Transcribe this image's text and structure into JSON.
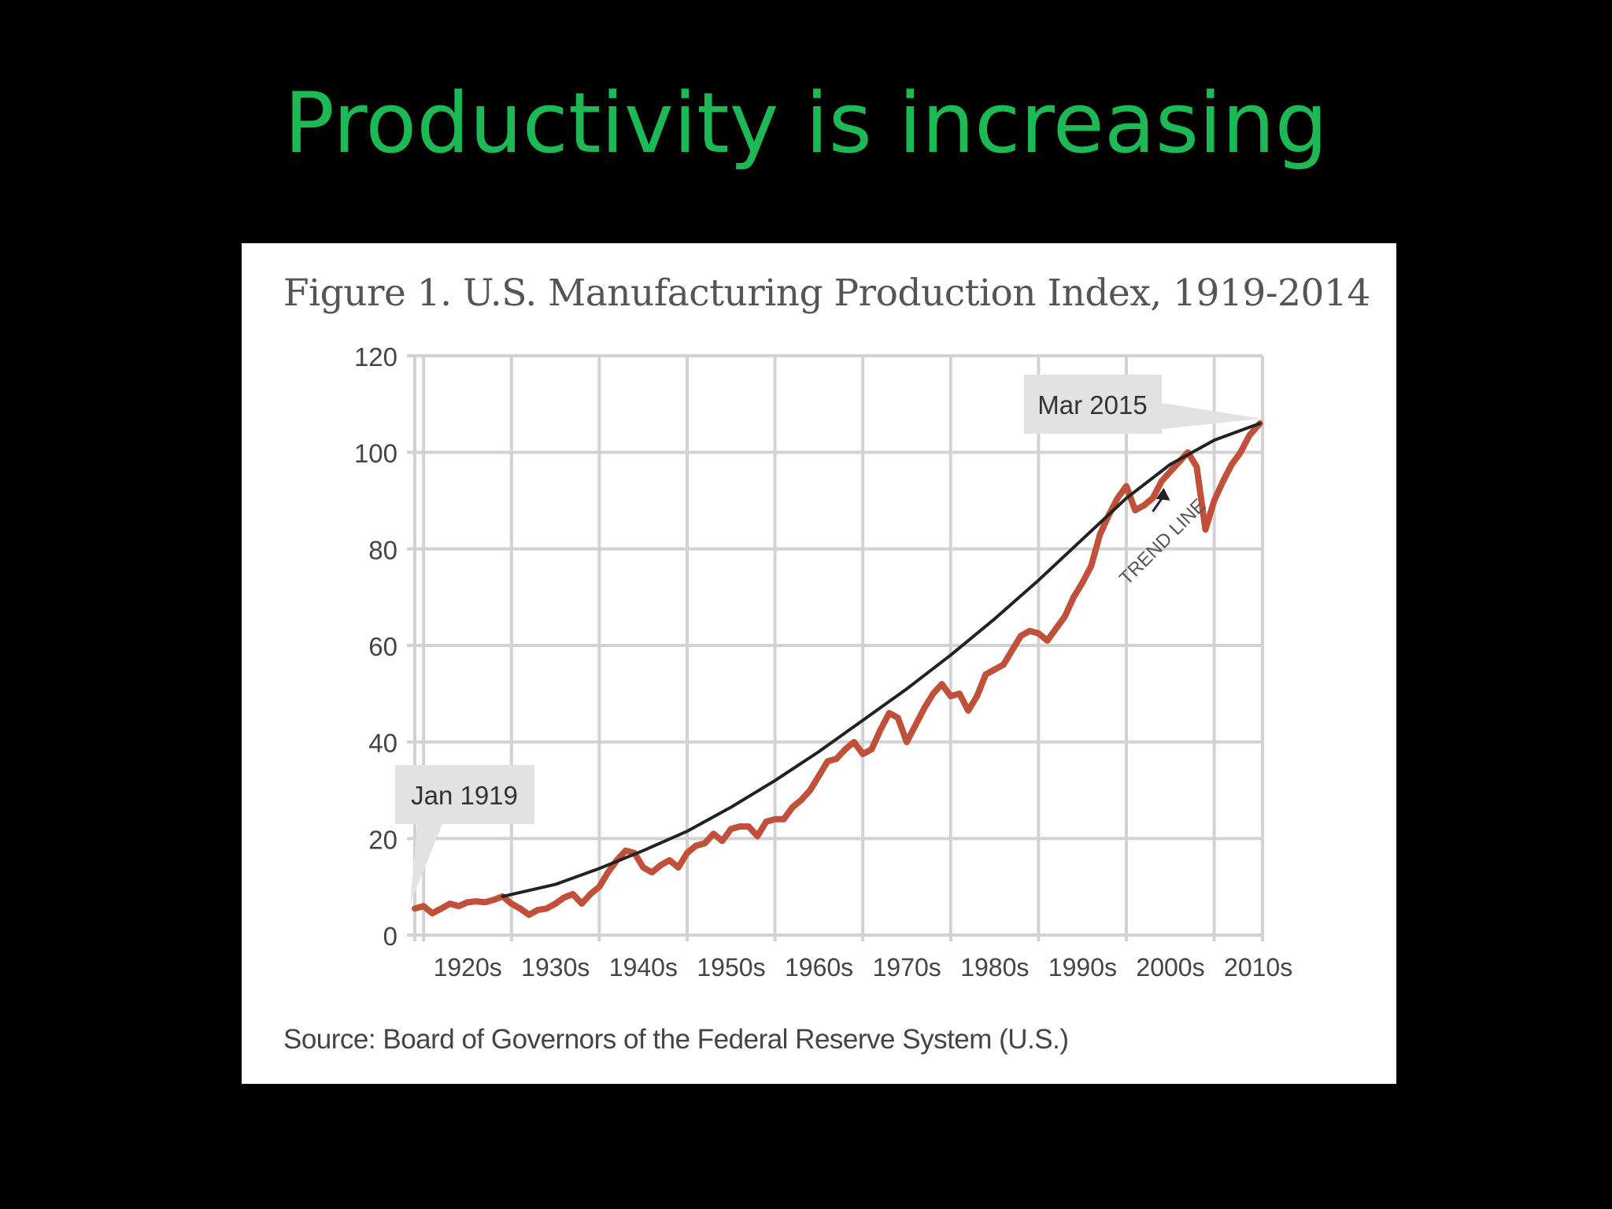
{
  "slide": {
    "title": "Productivity is increasing",
    "title_color": "#1db954",
    "background": "#000000"
  },
  "chart_data": {
    "type": "line",
    "title": "Figure 1. U.S. Manufacturing Production Index, 1919-2014",
    "source": "Source: Board of Governors of the Federal Reserve System (U.S.)",
    "xlabel": "",
    "ylabel": "",
    "xlim": [
      1919,
      2015.5
    ],
    "ylim": [
      0,
      120
    ],
    "y_ticks": [
      0,
      20,
      40,
      60,
      80,
      100,
      120
    ],
    "x_tick_labels": [
      "1920s",
      "1930s",
      "1940s",
      "1950s",
      "1960s",
      "1970s",
      "1980s",
      "1990s",
      "2000s",
      "2010s"
    ],
    "x_tick_positions": [
      1920,
      1930,
      1940,
      1950,
      1960,
      1970,
      1980,
      1990,
      2000,
      2010
    ],
    "grid": true,
    "series": [
      {
        "color": "#c0503a",
        "points": [
          [
            1919,
            5.5
          ],
          [
            1920,
            6
          ],
          [
            1921,
            4.5
          ],
          [
            1922,
            5.5
          ],
          [
            1923,
            6.5
          ],
          [
            1924,
            6
          ],
          [
            1925,
            6.8
          ],
          [
            1926,
            7
          ],
          [
            1927,
            6.8
          ],
          [
            1928,
            7.3
          ],
          [
            1929,
            8
          ],
          [
            1930,
            6.5
          ],
          [
            1931,
            5.5
          ],
          [
            1932,
            4.2
          ],
          [
            1933,
            5.2
          ],
          [
            1934,
            5.5
          ],
          [
            1935,
            6.5
          ],
          [
            1936,
            7.8
          ],
          [
            1937,
            8.5
          ],
          [
            1938,
            6.5
          ],
          [
            1939,
            8.5
          ],
          [
            1940,
            10
          ],
          [
            1941,
            13
          ],
          [
            1942,
            15.5
          ],
          [
            1943,
            17.5
          ],
          [
            1944,
            17
          ],
          [
            1945,
            14
          ],
          [
            1946,
            13
          ],
          [
            1947,
            14.5
          ],
          [
            1948,
            15.5
          ],
          [
            1949,
            14
          ],
          [
            1950,
            17
          ],
          [
            1951,
            18.5
          ],
          [
            1952,
            19
          ],
          [
            1953,
            21
          ],
          [
            1954,
            19.5
          ],
          [
            1955,
            22
          ],
          [
            1956,
            22.5
          ],
          [
            1957,
            22.5
          ],
          [
            1958,
            20.5
          ],
          [
            1959,
            23.5
          ],
          [
            1960,
            24
          ],
          [
            1961,
            24
          ],
          [
            1962,
            26.5
          ],
          [
            1963,
            28
          ],
          [
            1964,
            30
          ],
          [
            1965,
            33
          ],
          [
            1966,
            36
          ],
          [
            1967,
            36.5
          ],
          [
            1968,
            38.5
          ],
          [
            1969,
            40
          ],
          [
            1970,
            37.5
          ],
          [
            1971,
            38.5
          ],
          [
            1972,
            42.5
          ],
          [
            1973,
            46
          ],
          [
            1974,
            45
          ],
          [
            1975,
            40
          ],
          [
            1976,
            43.5
          ],
          [
            1977,
            47
          ],
          [
            1978,
            50
          ],
          [
            1979,
            52
          ],
          [
            1980,
            49.5
          ],
          [
            1981,
            50
          ],
          [
            1982,
            46.5
          ],
          [
            1983,
            49.5
          ],
          [
            1984,
            54
          ],
          [
            1985,
            55
          ],
          [
            1986,
            56
          ],
          [
            1987,
            59
          ],
          [
            1988,
            62
          ],
          [
            1989,
            63
          ],
          [
            1990,
            62.5
          ],
          [
            1991,
            61
          ],
          [
            1992,
            63.5
          ],
          [
            1993,
            66
          ],
          [
            1994,
            70
          ],
          [
            1995,
            73
          ],
          [
            1996,
            76.5
          ],
          [
            1997,
            83
          ],
          [
            1998,
            87
          ],
          [
            1999,
            90.5
          ],
          [
            2000,
            93
          ],
          [
            2001,
            88
          ],
          [
            2002,
            89
          ],
          [
            2003,
            90.5
          ],
          [
            2004,
            94
          ],
          [
            2005,
            96
          ],
          [
            2006,
            98
          ],
          [
            2007,
            100
          ],
          [
            2008,
            97
          ],
          [
            2009,
            84
          ],
          [
            2010,
            90
          ],
          [
            2011,
            94
          ],
          [
            2012,
            97.5
          ],
          [
            2013,
            100
          ],
          [
            2014,
            103.5
          ],
          [
            2015.2,
            106
          ]
        ]
      },
      {
        "color": "#222222",
        "points": [
          [
            1929,
            8
          ],
          [
            1935,
            10.5
          ],
          [
            1940,
            13.8
          ],
          [
            1945,
            17.5
          ],
          [
            1950,
            21.5
          ],
          [
            1955,
            26.5
          ],
          [
            1960,
            32
          ],
          [
            1965,
            38
          ],
          [
            1970,
            44.5
          ],
          [
            1975,
            51
          ],
          [
            1980,
            58
          ],
          [
            1985,
            65.5
          ],
          [
            1990,
            73.5
          ],
          [
            1995,
            82
          ],
          [
            2000,
            90.5
          ],
          [
            2005,
            97.5
          ],
          [
            2010,
            102.5
          ],
          [
            2015.2,
            106
          ]
        ]
      }
    ],
    "annotations": [
      {
        "text": "Jan 1919",
        "x": 1919,
        "y": 5.5
      },
      {
        "text": "Mar 2015",
        "x": 2015.2,
        "y": 106
      },
      {
        "text": "TREND LINE",
        "x": 2003,
        "y": 76
      }
    ]
  }
}
